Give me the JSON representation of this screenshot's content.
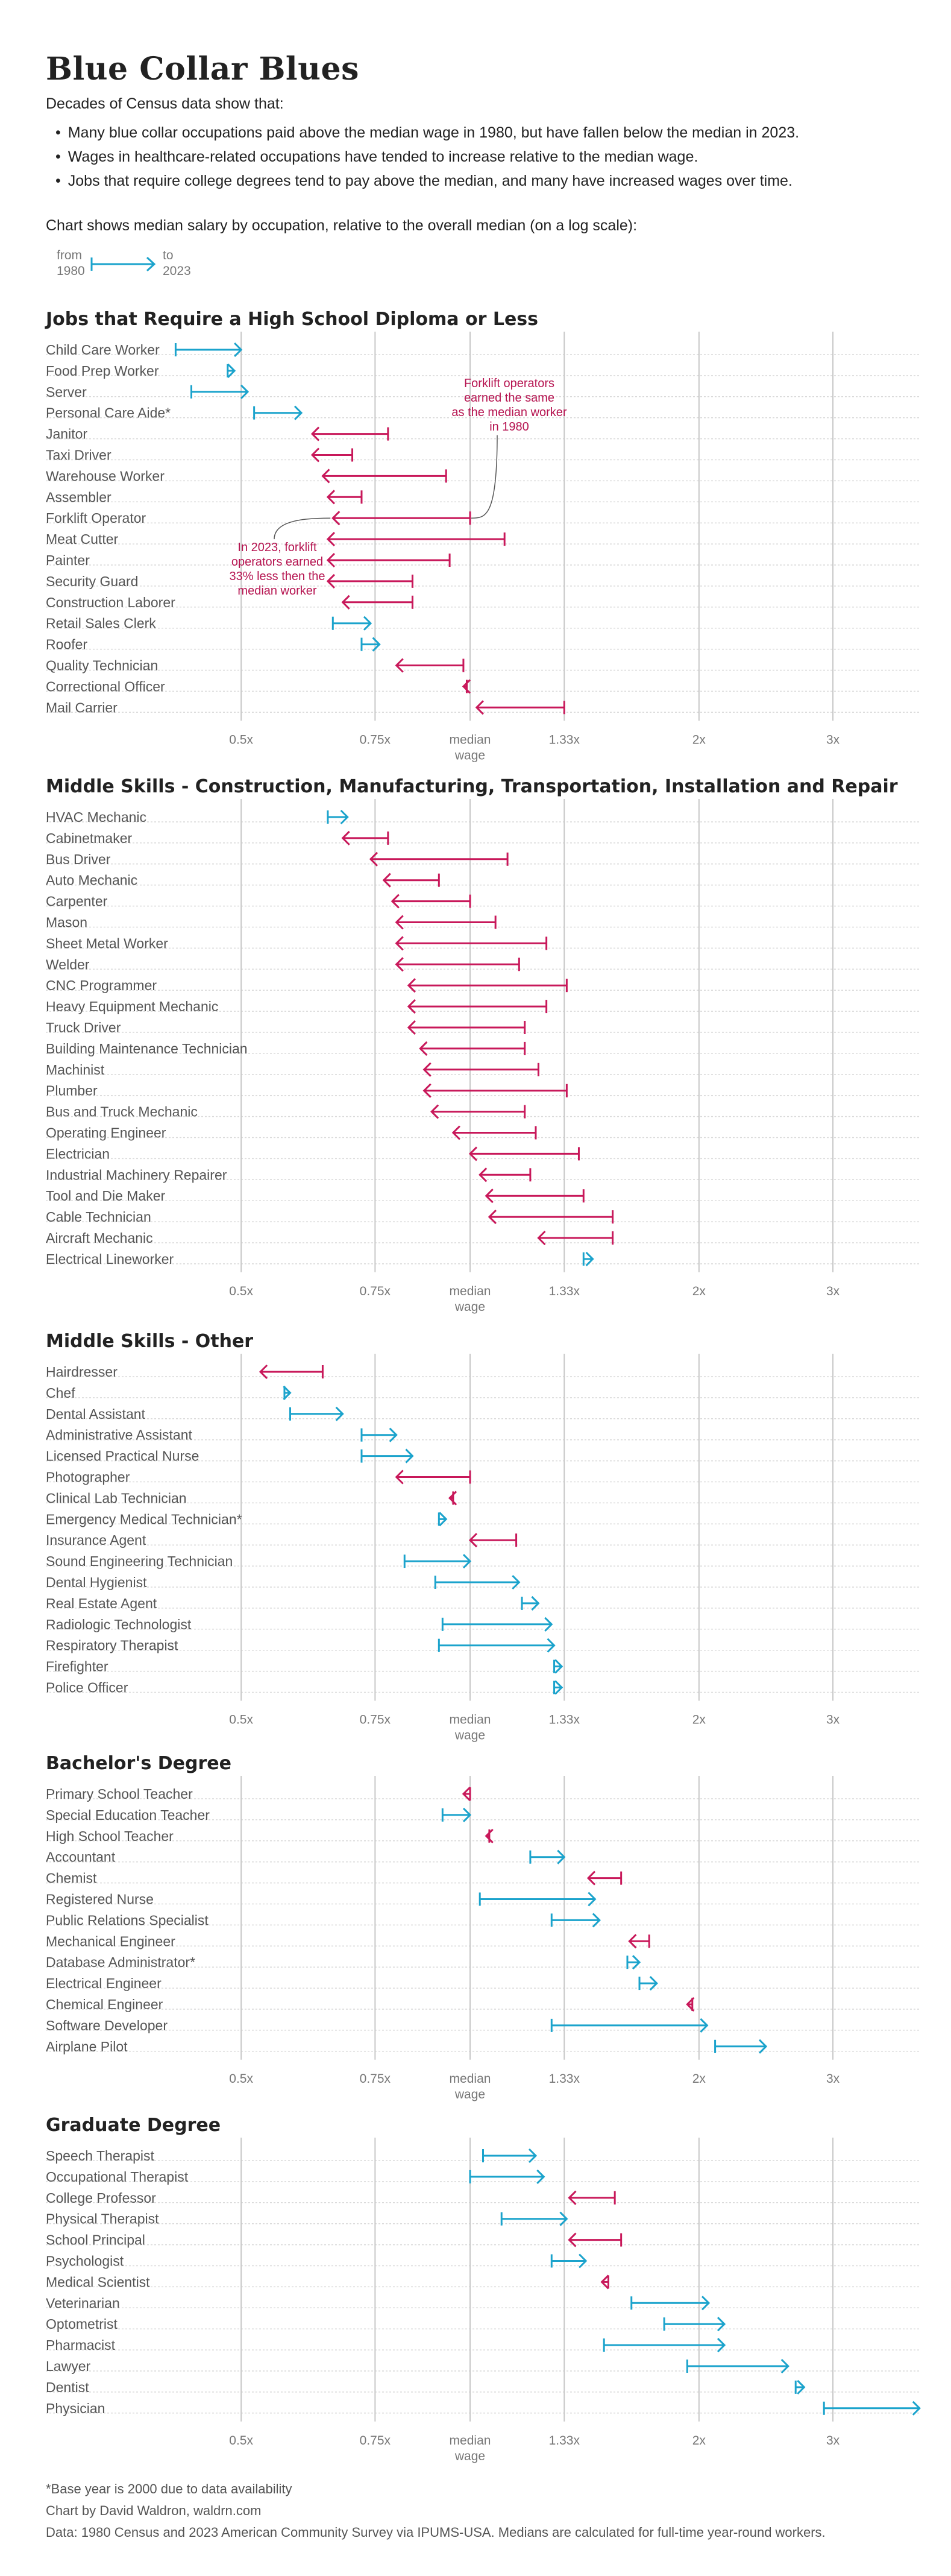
{
  "title": "Blue Collar Blues",
  "intro": "Decades of Census data show that:",
  "bullets": [
    "Many blue collar occupations paid above the median wage in 1980, but have fallen below the median in 2023.",
    "Wages in healthcare-related occupations have tended to increase relative to the median wage.",
    "Jobs that require college degrees tend to pay above the median, and many have increased wages over time."
  ],
  "chart_description": "Chart shows median salary by occupation, relative to the overall median (on a log scale):",
  "legend": {
    "from_label": "from",
    "from_year": "1980",
    "to_label": "to",
    "to_year": "2023"
  },
  "colors": {
    "increase": "#1ba3cc",
    "decrease": "#c8185a",
    "gridline": "#c8c8c8",
    "row_line": "#d9d9d9"
  },
  "x_ticks": [
    {
      "value": 0.5,
      "label": "0.5x"
    },
    {
      "value": 0.75,
      "label": "0.75x"
    },
    {
      "value": 1,
      "label": "median",
      "label2": "wage"
    },
    {
      "value": 1.33,
      "label": "1.33x"
    },
    {
      "value": 2,
      "label": "2x"
    },
    {
      "value": 3,
      "label": "3x"
    }
  ],
  "chart_data": [
    {
      "type": "dumbbell-arrow",
      "title": "Jobs that Require a High School Diploma or Less",
      "x_scale": "log",
      "xlim": [
        0.4,
        4.0
      ],
      "occupations": [
        {
          "name": "Child Care Worker",
          "from": 0.41,
          "to": 0.5
        },
        {
          "name": "Food Prep Worker",
          "from": 0.48,
          "to": 0.49
        },
        {
          "name": "Server",
          "from": 0.43,
          "to": 0.51
        },
        {
          "name": "Personal Care Aide*",
          "from": 0.52,
          "to": 0.6
        },
        {
          "name": "Janitor",
          "from": 0.78,
          "to": 0.62
        },
        {
          "name": "Taxi Driver",
          "from": 0.7,
          "to": 0.62
        },
        {
          "name": "Warehouse Worker",
          "from": 0.93,
          "to": 0.64
        },
        {
          "name": "Assembler",
          "from": 0.72,
          "to": 0.65
        },
        {
          "name": "Forklift Operator",
          "from": 1.0,
          "to": 0.66
        },
        {
          "name": "Meat Cutter",
          "from": 1.11,
          "to": 0.65
        },
        {
          "name": "Painter",
          "from": 0.94,
          "to": 0.65
        },
        {
          "name": "Security Guard",
          "from": 0.84,
          "to": 0.65
        },
        {
          "name": "Construction Laborer",
          "from": 0.84,
          "to": 0.68
        },
        {
          "name": "Retail Sales Clerk",
          "from": 0.66,
          "to": 0.74
        },
        {
          "name": "Roofer",
          "from": 0.72,
          "to": 0.76
        },
        {
          "name": "Quality Technician",
          "from": 0.98,
          "to": 0.8
        },
        {
          "name": "Correctional Officer",
          "from": 0.99,
          "to": 0.98
        },
        {
          "name": "Mail Carrier",
          "from": 1.33,
          "to": 1.02
        }
      ],
      "annotations": [
        {
          "text": [
            "Forklift operators",
            "earned the same",
            "as the median worker",
            "in 1980"
          ],
          "points_to": "Forklift Operator 1980"
        },
        {
          "text": [
            "In 2023, forklift",
            "operators earned",
            "33% less then the",
            "median worker"
          ],
          "points_to": "Forklift Operator 2023"
        }
      ]
    },
    {
      "type": "dumbbell-arrow",
      "title": "Middle Skills - Construction, Manufacturing, Transportation, Installation and Repair",
      "x_scale": "log",
      "xlim": [
        0.4,
        4.0
      ],
      "occupations": [
        {
          "name": "HVAC Mechanic",
          "from": 0.65,
          "to": 0.69
        },
        {
          "name": "Cabinetmaker",
          "from": 0.78,
          "to": 0.68
        },
        {
          "name": "Bus Driver",
          "from": 1.12,
          "to": 0.74
        },
        {
          "name": "Auto Mechanic",
          "from": 0.91,
          "to": 0.77
        },
        {
          "name": "Carpenter",
          "from": 1.0,
          "to": 0.79
        },
        {
          "name": "Mason",
          "from": 1.08,
          "to": 0.8
        },
        {
          "name": "Sheet Metal Worker",
          "from": 1.26,
          "to": 0.8
        },
        {
          "name": "Welder",
          "from": 1.16,
          "to": 0.8
        },
        {
          "name": "CNC Programmer",
          "from": 1.34,
          "to": 0.83
        },
        {
          "name": "Heavy Equipment Mechanic",
          "from": 1.26,
          "to": 0.83
        },
        {
          "name": "Truck Driver",
          "from": 1.18,
          "to": 0.83
        },
        {
          "name": "Building Maintenance Technician",
          "from": 1.18,
          "to": 0.86
        },
        {
          "name": "Machinist",
          "from": 1.23,
          "to": 0.87
        },
        {
          "name": "Plumber",
          "from": 1.34,
          "to": 0.87
        },
        {
          "name": "Bus and Truck Mechanic",
          "from": 1.18,
          "to": 0.89
        },
        {
          "name": "Operating Engineer",
          "from": 1.22,
          "to": 0.95
        },
        {
          "name": "Electrician",
          "from": 1.39,
          "to": 1.0
        },
        {
          "name": "Industrial Machinery Repairer",
          "from": 1.2,
          "to": 1.03
        },
        {
          "name": "Tool and Die Maker",
          "from": 1.41,
          "to": 1.05
        },
        {
          "name": "Cable Technician",
          "from": 1.54,
          "to": 1.06
        },
        {
          "name": "Aircraft Mechanic",
          "from": 1.54,
          "to": 1.23
        },
        {
          "name": "Electrical Lineworker",
          "from": 1.41,
          "to": 1.45
        }
      ]
    },
    {
      "type": "dumbbell-arrow",
      "title": "Middle Skills - Other",
      "x_scale": "log",
      "xlim": [
        0.4,
        4.0
      ],
      "occupations": [
        {
          "name": "Hairdresser",
          "from": 0.64,
          "to": 0.53
        },
        {
          "name": "Chef",
          "from": 0.57,
          "to": 0.58
        },
        {
          "name": "Dental Assistant",
          "from": 0.58,
          "to": 0.68
        },
        {
          "name": "Administrative Assistant",
          "from": 0.72,
          "to": 0.8
        },
        {
          "name": "Licensed Practical Nurse",
          "from": 0.72,
          "to": 0.84
        },
        {
          "name": "Photographer",
          "from": 1.0,
          "to": 0.8
        },
        {
          "name": "Clinical Lab Technician",
          "from": 0.95,
          "to": 0.94
        },
        {
          "name": "Emergency Medical Technician*",
          "from": 0.91,
          "to": 0.93
        },
        {
          "name": "Insurance Agent",
          "from": 1.15,
          "to": 1.0
        },
        {
          "name": "Sound Engineering Technician",
          "from": 0.82,
          "to": 1.0
        },
        {
          "name": "Dental Hygienist",
          "from": 0.9,
          "to": 1.16
        },
        {
          "name": "Real Estate Agent",
          "from": 1.17,
          "to": 1.23
        },
        {
          "name": "Radiologic Technologist",
          "from": 0.92,
          "to": 1.28
        },
        {
          "name": "Respiratory Therapist",
          "from": 0.91,
          "to": 1.29
        },
        {
          "name": "Firefighter",
          "from": 1.29,
          "to": 1.32
        },
        {
          "name": "Police Officer",
          "from": 1.29,
          "to": 1.32
        }
      ]
    },
    {
      "type": "dumbbell-arrow",
      "title": "Bachelor's Degree",
      "x_scale": "log",
      "xlim": [
        0.4,
        4.0
      ],
      "occupations": [
        {
          "name": "Primary School Teacher",
          "from": 1.0,
          "to": 0.98
        },
        {
          "name": "Special Education Teacher",
          "from": 0.92,
          "to": 1.0
        },
        {
          "name": "High School Teacher",
          "from": 1.06,
          "to": 1.05
        },
        {
          "name": "Accountant",
          "from": 1.2,
          "to": 1.33
        },
        {
          "name": "Chemist",
          "from": 1.58,
          "to": 1.43
        },
        {
          "name": "Registered Nurse",
          "from": 1.03,
          "to": 1.46
        },
        {
          "name": "Public Relations Specialist",
          "from": 1.28,
          "to": 1.48
        },
        {
          "name": "Mechanical Engineer",
          "from": 1.72,
          "to": 1.62
        },
        {
          "name": "Database Administrator*",
          "from": 1.61,
          "to": 1.67
        },
        {
          "name": "Electrical Engineer",
          "from": 1.67,
          "to": 1.76
        },
        {
          "name": "Chemical Engineer",
          "from": 1.96,
          "to": 1.93
        },
        {
          "name": "Software Developer",
          "from": 1.28,
          "to": 2.05
        },
        {
          "name": "Airplane Pilot",
          "from": 2.1,
          "to": 2.45
        }
      ]
    },
    {
      "type": "dumbbell-arrow",
      "title": "Graduate Degree",
      "x_scale": "log",
      "xlim": [
        0.4,
        4.0
      ],
      "occupations": [
        {
          "name": "Speech Therapist",
          "from": 1.04,
          "to": 1.22
        },
        {
          "name": "Occupational Therapist",
          "from": 1.0,
          "to": 1.25
        },
        {
          "name": "College Professor",
          "from": 1.55,
          "to": 1.35
        },
        {
          "name": "Physical Therapist",
          "from": 1.1,
          "to": 1.34
        },
        {
          "name": "School Principal",
          "from": 1.58,
          "to": 1.35
        },
        {
          "name": "Psychologist",
          "from": 1.28,
          "to": 1.42
        },
        {
          "name": "Medical Scientist",
          "from": 1.52,
          "to": 1.49
        },
        {
          "name": "Veterinarian",
          "from": 1.63,
          "to": 2.06
        },
        {
          "name": "Optometrist",
          "from": 1.8,
          "to": 2.16
        },
        {
          "name": "Pharmacist",
          "from": 1.5,
          "to": 2.16
        },
        {
          "name": "Lawyer",
          "from": 1.93,
          "to": 2.62
        },
        {
          "name": "Dentist",
          "from": 2.68,
          "to": 2.75
        },
        {
          "name": "Physician",
          "from": 2.92,
          "to": 3.9
        }
      ]
    }
  ],
  "footnotes": [
    "*Base year is 2000 due to data availability",
    "Chart by David Waldron, waldrn.com",
    "Data: 1980 Census and 2023 American Community Survey via IPUMS-USA. Medians are calculated for full-time year-round workers."
  ]
}
